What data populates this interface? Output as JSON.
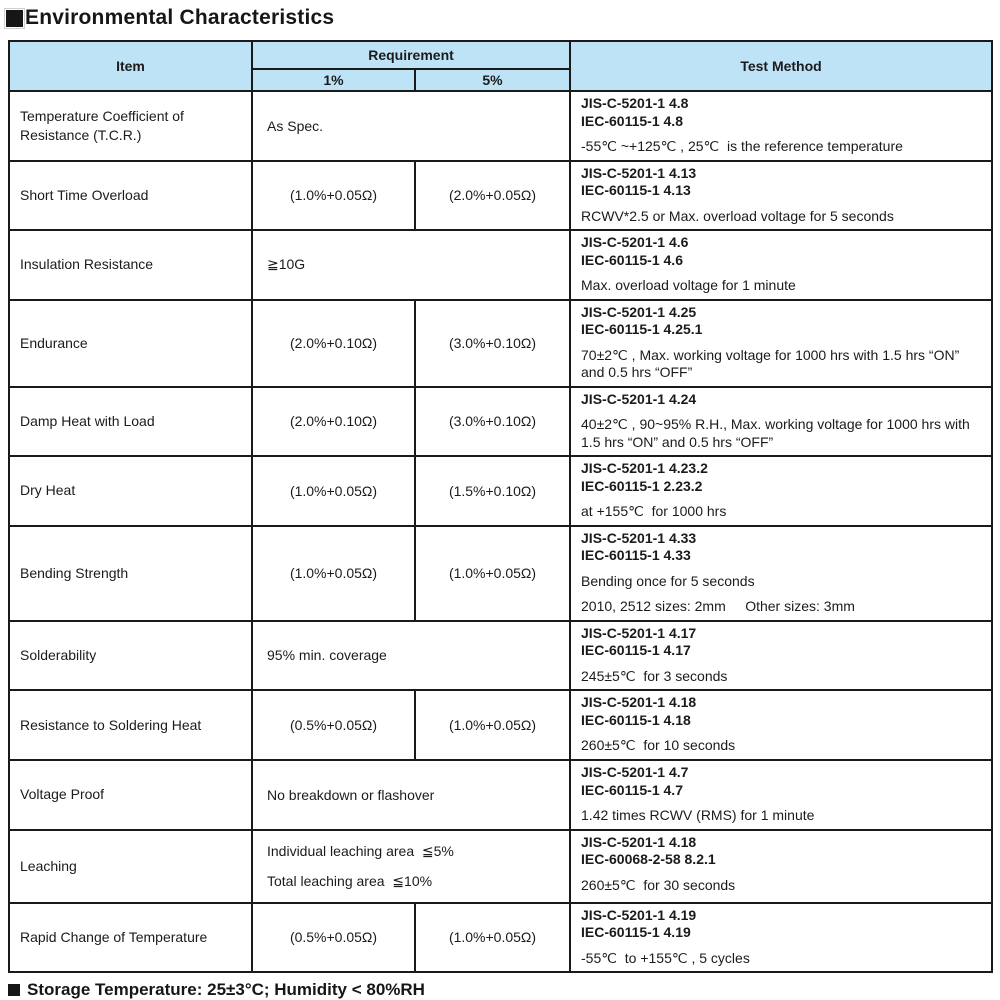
{
  "colors": {
    "header_bg": "#bfe3f6",
    "border": "#1a1a1a",
    "text": "#1b1b1b"
  },
  "title": {
    "bullet": "■",
    "text": "Environmental Characteristics"
  },
  "footer": {
    "bullet": "■",
    "text": "Storage Temperature: 25±3°C; Humidity < 80%RH"
  },
  "table": {
    "headers": {
      "item": "Item",
      "requirement": "Requirement",
      "pct1": "1%",
      "pct5": "5%",
      "test_method": "Test Method"
    },
    "rows": [
      {
        "item": "Temperature Coefficient of Resistance (T.C.R.)",
        "req_span": [
          "As Spec."
        ],
        "standards": [
          "JIS-C-5201-1 4.8",
          "IEC-60115-1 4.8"
        ],
        "details": [
          "-55℃ ~+125℃ , 25℃  is the reference temperature"
        ]
      },
      {
        "item": "Short Time Overload",
        "req_1pct": "(1.0%+0.05Ω)",
        "req_5pct": "(2.0%+0.05Ω)",
        "standards": [
          "JIS-C-5201-1 4.13",
          "IEC-60115-1 4.13"
        ],
        "details": [
          "RCWV*2.5 or Max. overload voltage for 5 seconds"
        ]
      },
      {
        "item": "Insulation Resistance",
        "req_span": [
          "≧10G"
        ],
        "standards": [
          "JIS-C-5201-1 4.6",
          "IEC-60115-1 4.6"
        ],
        "details": [
          "Max. overload voltage for 1 minute"
        ]
      },
      {
        "item": "Endurance",
        "req_1pct": "(2.0%+0.10Ω)",
        "req_5pct": "(3.0%+0.10Ω)",
        "standards": [
          "JIS-C-5201-1 4.25",
          "IEC-60115-1 4.25.1"
        ],
        "details": [
          "70±2℃ , Max. working voltage for 1000 hrs with 1.5 hrs “ON” and 0.5 hrs “OFF”"
        ]
      },
      {
        "item": "Damp Heat with Load",
        "req_1pct": "(2.0%+0.10Ω)",
        "req_5pct": "(3.0%+0.10Ω)",
        "standards": [
          "JIS-C-5201-1 4.24"
        ],
        "details": [
          "40±2℃ , 90~95% R.H., Max. working voltage for 1000 hrs with 1.5 hrs “ON” and 0.5 hrs “OFF”"
        ]
      },
      {
        "item": "Dry Heat",
        "req_1pct": "(1.0%+0.05Ω)",
        "req_5pct": "(1.5%+0.10Ω)",
        "standards": [
          "JIS-C-5201-1 4.23.2",
          "IEC-60115-1 2.23.2"
        ],
        "details": [
          "at +155℃  for 1000 hrs"
        ]
      },
      {
        "item": "Bending Strength",
        "req_1pct": "(1.0%+0.05Ω)",
        "req_5pct": "(1.0%+0.05Ω)",
        "standards": [
          "JIS-C-5201-1 4.33",
          "IEC-60115-1 4.33"
        ],
        "details": [
          "Bending once for 5 seconds",
          "2010, 2512 sizes: 2mm     Other sizes: 3mm"
        ]
      },
      {
        "item": "Solderability",
        "req_span": [
          "95% min. coverage"
        ],
        "standards": [
          "JIS-C-5201-1 4.17",
          "IEC-60115-1 4.17"
        ],
        "details": [
          "245±5℃  for 3 seconds"
        ]
      },
      {
        "item": "Resistance to Soldering Heat",
        "req_1pct": "(0.5%+0.05Ω)",
        "req_5pct": "(1.0%+0.05Ω)",
        "standards": [
          "JIS-C-5201-1 4.18",
          "IEC-60115-1 4.18"
        ],
        "details": [
          "260±5℃  for 10 seconds"
        ]
      },
      {
        "item": "Voltage Proof",
        "req_span": [
          "No breakdown or flashover"
        ],
        "standards": [
          "JIS-C-5201-1 4.7",
          "IEC-60115-1 4.7"
        ],
        "details": [
          "1.42 times RCWV (RMS) for 1 minute"
        ]
      },
      {
        "item": "Leaching",
        "req_span": [
          "Individual leaching area  ≦5%",
          "Total leaching area  ≦10%"
        ],
        "standards": [
          "JIS-C-5201-1 4.18",
          "IEC-60068-2-58 8.2.1"
        ],
        "details": [
          "260±5℃  for 30 seconds"
        ]
      },
      {
        "item": "Rapid Change of Temperature",
        "req_1pct": "(0.5%+0.05Ω)",
        "req_5pct": "(1.0%+0.05Ω)",
        "standards": [
          "JIS-C-5201-1 4.19",
          "IEC-60115-1 4.19"
        ],
        "details": [
          "-55℃  to +155℃ , 5 cycles"
        ]
      }
    ]
  }
}
